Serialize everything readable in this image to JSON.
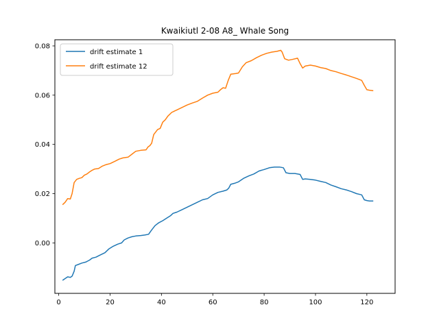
{
  "chart_data": {
    "type": "line",
    "title": "Kwaikiutl 2-08 A8_ Whale Song",
    "xlabel": "",
    "ylabel": "",
    "xlim": [
      -1.5,
      131
    ],
    "ylim": [
      -0.0205,
      0.0825
    ],
    "x_ticks": [
      0,
      20,
      40,
      60,
      80,
      100,
      120
    ],
    "y_ticks": [
      0.0,
      0.02,
      0.04,
      0.06,
      0.08
    ],
    "x_tick_labels": [
      "0",
      "20",
      "40",
      "60",
      "80",
      "100",
      "120"
    ],
    "y_tick_labels": [
      "0.00",
      "0.02",
      "0.04",
      "0.06",
      "0.08"
    ],
    "grid": false,
    "legend_position": "upper-left",
    "series": [
      {
        "name": "drift estimate 1",
        "color": "#1f77b4",
        "points": [
          [
            1.5,
            -0.0152
          ],
          [
            2.5,
            -0.0145
          ],
          [
            3.5,
            -0.0138
          ],
          [
            4.5,
            -0.014
          ],
          [
            5.2,
            -0.0135
          ],
          [
            6,
            -0.0115
          ],
          [
            6.5,
            -0.0092
          ],
          [
            7.5,
            -0.0088
          ],
          [
            9,
            -0.0082
          ],
          [
            10.5,
            -0.0078
          ],
          [
            12,
            -0.007
          ],
          [
            13,
            -0.0062
          ],
          [
            14.5,
            -0.0058
          ],
          [
            16,
            -0.005
          ],
          [
            18,
            -0.004
          ],
          [
            19.5,
            -0.0025
          ],
          [
            21,
            -0.0015
          ],
          [
            23,
            -0.0005
          ],
          [
            24.5,
            0.0
          ],
          [
            25.5,
            0.0012
          ],
          [
            27,
            0.002
          ],
          [
            28.5,
            0.0025
          ],
          [
            30,
            0.0028
          ],
          [
            32,
            0.003
          ],
          [
            33.5,
            0.0032
          ],
          [
            35,
            0.0035
          ],
          [
            36,
            0.005
          ],
          [
            37.5,
            0.007
          ],
          [
            39,
            0.0082
          ],
          [
            40.5,
            0.009
          ],
          [
            42,
            0.01
          ],
          [
            43.5,
            0.011
          ],
          [
            44.5,
            0.012
          ],
          [
            46,
            0.0125
          ],
          [
            48,
            0.0135
          ],
          [
            50,
            0.0145
          ],
          [
            52,
            0.0155
          ],
          [
            54,
            0.0165
          ],
          [
            56,
            0.0175
          ],
          [
            58,
            0.018
          ],
          [
            60,
            0.0195
          ],
          [
            62,
            0.0205
          ],
          [
            64,
            0.021
          ],
          [
            65.5,
            0.0215
          ],
          [
            66.2,
            0.0222
          ],
          [
            67,
            0.0238
          ],
          [
            68.5,
            0.0242
          ],
          [
            70,
            0.0248
          ],
          [
            72,
            0.0262
          ],
          [
            74,
            0.0272
          ],
          [
            76,
            0.028
          ],
          [
            78,
            0.0292
          ],
          [
            80,
            0.0298
          ],
          [
            82,
            0.0305
          ],
          [
            84,
            0.0308
          ],
          [
            86,
            0.0308
          ],
          [
            87.5,
            0.0305
          ],
          [
            88.5,
            0.0285
          ],
          [
            90,
            0.0282
          ],
          [
            92,
            0.0282
          ],
          [
            94,
            0.0278
          ],
          [
            95,
            0.0258
          ],
          [
            96,
            0.026
          ],
          [
            98,
            0.0258
          ],
          [
            100,
            0.0255
          ],
          [
            102,
            0.025
          ],
          [
            104,
            0.0245
          ],
          [
            106,
            0.0235
          ],
          [
            108,
            0.0228
          ],
          [
            110,
            0.022
          ],
          [
            112,
            0.0215
          ],
          [
            114,
            0.0208
          ],
          [
            116,
            0.02
          ],
          [
            118,
            0.0195
          ],
          [
            119,
            0.0175
          ],
          [
            120,
            0.0172
          ],
          [
            121,
            0.017
          ],
          [
            122.5,
            0.017
          ]
        ]
      },
      {
        "name": "drift estimate 12",
        "color": "#ff7f0e",
        "points": [
          [
            1.5,
            0.0155
          ],
          [
            2.5,
            0.0165
          ],
          [
            3.5,
            0.018
          ],
          [
            4.5,
            0.0178
          ],
          [
            5.2,
            0.02
          ],
          [
            6,
            0.0245
          ],
          [
            7,
            0.0258
          ],
          [
            8,
            0.0262
          ],
          [
            9,
            0.0265
          ],
          [
            10,
            0.0275
          ],
          [
            11,
            0.028
          ],
          [
            12,
            0.0288
          ],
          [
            13,
            0.0295
          ],
          [
            14,
            0.03
          ],
          [
            15.5,
            0.0302
          ],
          [
            17,
            0.0312
          ],
          [
            18.5,
            0.0318
          ],
          [
            20,
            0.0322
          ],
          [
            22,
            0.0332
          ],
          [
            23.5,
            0.034
          ],
          [
            25,
            0.0345
          ],
          [
            27,
            0.0348
          ],
          [
            28.5,
            0.036
          ],
          [
            30,
            0.0372
          ],
          [
            32,
            0.0376
          ],
          [
            34,
            0.0378
          ],
          [
            34.8,
            0.039
          ],
          [
            35.5,
            0.0395
          ],
          [
            36.2,
            0.0405
          ],
          [
            37,
            0.044
          ],
          [
            38.5,
            0.046
          ],
          [
            39.5,
            0.0465
          ],
          [
            40.5,
            0.049
          ],
          [
            41.5,
            0.05
          ],
          [
            42.5,
            0.0515
          ],
          [
            44,
            0.053
          ],
          [
            46,
            0.054
          ],
          [
            48,
            0.055
          ],
          [
            50,
            0.056
          ],
          [
            52,
            0.0568
          ],
          [
            54,
            0.0575
          ],
          [
            56,
            0.0588
          ],
          [
            58,
            0.06
          ],
          [
            60,
            0.0608
          ],
          [
            62,
            0.0612
          ],
          [
            63,
            0.0622
          ],
          [
            64,
            0.063
          ],
          [
            65,
            0.0628
          ],
          [
            66,
            0.066
          ],
          [
            67,
            0.0685
          ],
          [
            69,
            0.0688
          ],
          [
            70,
            0.069
          ],
          [
            71.5,
            0.0715
          ],
          [
            73,
            0.0732
          ],
          [
            75,
            0.074
          ],
          [
            77,
            0.0752
          ],
          [
            79,
            0.0762
          ],
          [
            81,
            0.077
          ],
          [
            83,
            0.0775
          ],
          [
            85,
            0.0778
          ],
          [
            86.5,
            0.0782
          ],
          [
            87,
            0.0775
          ],
          [
            88,
            0.0748
          ],
          [
            89.5,
            0.0742
          ],
          [
            91,
            0.0745
          ],
          [
            93,
            0.075
          ],
          [
            94,
            0.0728
          ],
          [
            95,
            0.071
          ],
          [
            96,
            0.0718
          ],
          [
            98,
            0.0722
          ],
          [
            100,
            0.0718
          ],
          [
            102,
            0.0712
          ],
          [
            104,
            0.0708
          ],
          [
            106,
            0.07
          ],
          [
            108,
            0.0695
          ],
          [
            110,
            0.0688
          ],
          [
            112,
            0.0682
          ],
          [
            114,
            0.0675
          ],
          [
            116,
            0.0668
          ],
          [
            118,
            0.066
          ],
          [
            119,
            0.064
          ],
          [
            120,
            0.0622
          ],
          [
            121,
            0.062
          ],
          [
            122.5,
            0.0618
          ]
        ]
      }
    ]
  }
}
